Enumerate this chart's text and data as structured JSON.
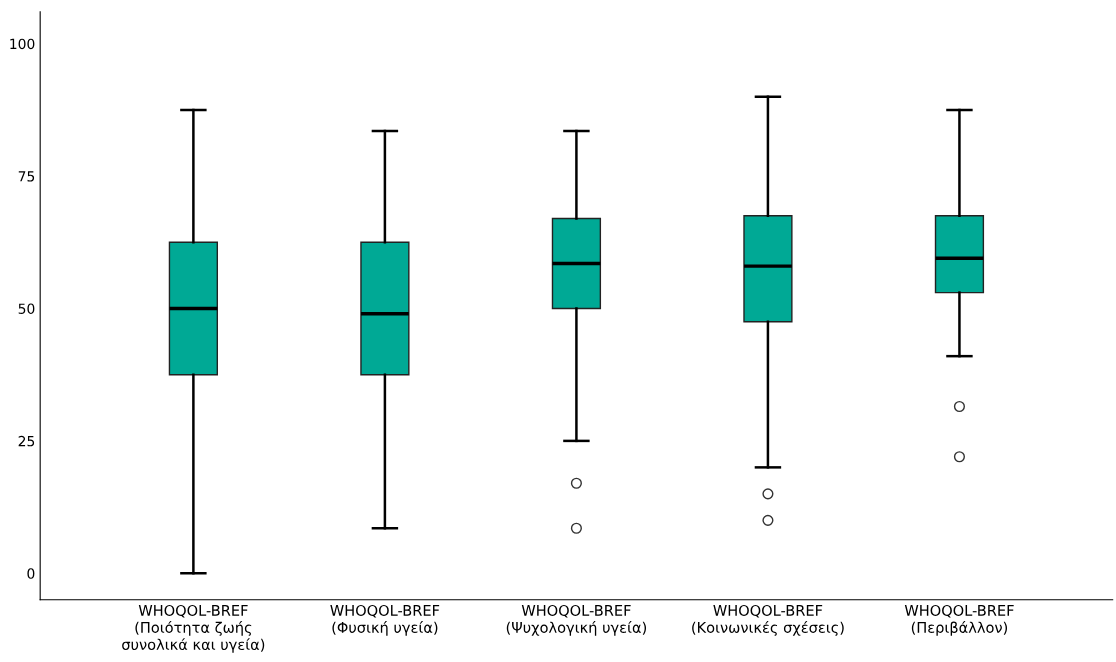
{
  "chart_data": {
    "type": "box",
    "categories": [
      "WHOQOL-BREF\n(Ποιότητα ζωής\nσυνολικά και υγεία)",
      "WHOQOL-BREF\n(Φυσική υγεία)",
      "WHOQOL-BREF\n(Ψυχολογική υγεία)",
      "WHOQOL-BREF\n(Κοινωνικές σχέσεις)",
      "WHOQOL-BREF\n(Περιβάλλον)"
    ],
    "color": "#00a995",
    "boxes": [
      {
        "low": 0,
        "q1": 37.5,
        "median": 50,
        "q3": 62.5,
        "high": 87.5
      },
      {
        "low": 8.5,
        "q1": 37.5,
        "median": 49,
        "q3": 62.5,
        "high": 83.5
      },
      {
        "low": 25,
        "q1": 50,
        "median": 58.5,
        "q3": 67,
        "high": 83.5,
        "outliers": [
          17,
          8.5
        ]
      },
      {
        "low": 20,
        "q1": 47.5,
        "median": 58,
        "q3": 67.5,
        "high": 90,
        "outliers": [
          15,
          10
        ]
      },
      {
        "low": 41,
        "q1": 53,
        "median": 59.5,
        "q3": 67.5,
        "high": 87.5,
        "outliers": [
          31.5,
          22
        ]
      }
    ],
    "ylim": [
      -5,
      106
    ],
    "yticks": [
      0,
      25,
      50,
      75,
      100
    ],
    "grid": false
  }
}
